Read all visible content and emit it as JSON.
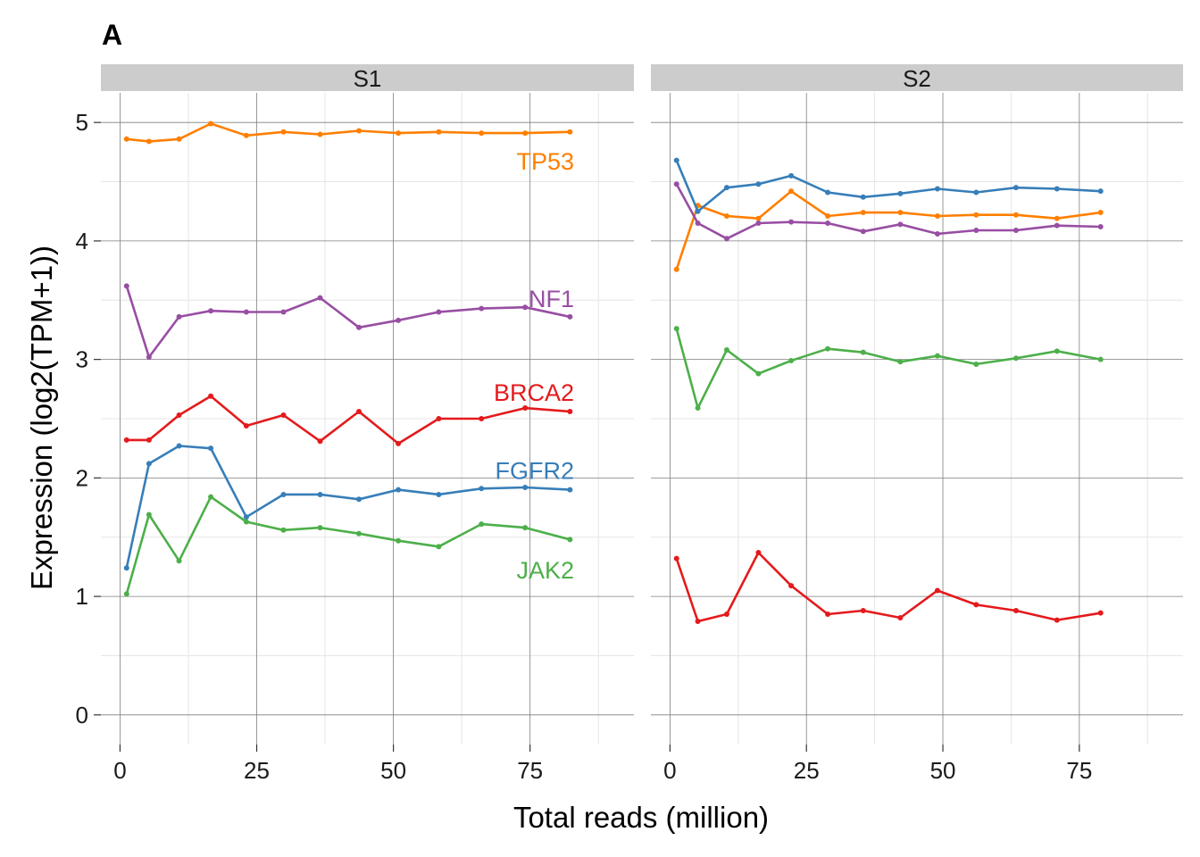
{
  "panel_tag": "A",
  "colors": {
    "TP53": "#FF7F00",
    "NF1": "#984EA3",
    "BRCA2": "#E41A1C",
    "FGFR2": "#377EB8",
    "JAK2": "#4DAF4A",
    "strip_bg": "#cccccc",
    "grid_major": "#7f7f7f",
    "grid_minor": "#e5e5e5"
  },
  "chart_data": {
    "type": "line",
    "xlabel": "Total reads (million)",
    "ylabel": "Expression (log2(TPM+1))",
    "xlim": [
      -3.5,
      94
    ],
    "ylim": [
      -0.25,
      5.25
    ],
    "x_ticks": [
      0,
      25,
      50,
      75
    ],
    "y_ticks": [
      0,
      1,
      2,
      3,
      4,
      5
    ],
    "x_tick_labels": [
      "0",
      "25",
      "50",
      "75"
    ],
    "y_tick_labels": [
      "0",
      "1",
      "2",
      "3",
      "4",
      "5"
    ],
    "grid": true,
    "facets": [
      {
        "name": "S1",
        "x": [
          1.2,
          5.3,
          10.8,
          16.6,
          23.1,
          29.9,
          36.6,
          43.7,
          50.9,
          58.3,
          66.1,
          74.1,
          82.3
        ],
        "series": [
          {
            "name": "TP53",
            "values": [
              4.86,
              4.84,
              4.86,
              4.99,
              4.89,
              4.92,
              4.9,
              4.93,
              4.91,
              4.92,
              4.91,
              4.91,
              4.92
            ]
          },
          {
            "name": "NF1",
            "values": [
              3.62,
              3.02,
              3.36,
              3.41,
              3.4,
              3.4,
              3.52,
              3.27,
              3.33,
              3.4,
              3.43,
              3.44,
              3.36
            ]
          },
          {
            "name": "BRCA2",
            "values": [
              2.32,
              2.32,
              2.53,
              2.69,
              2.44,
              2.53,
              2.31,
              2.56,
              2.29,
              2.5,
              2.5,
              2.59,
              2.56
            ]
          },
          {
            "name": "FGFR2",
            "values": [
              1.24,
              2.12,
              2.27,
              2.25,
              1.67,
              1.86,
              1.86,
              1.82,
              1.9,
              1.86,
              1.91,
              1.92,
              1.9
            ]
          },
          {
            "name": "JAK2",
            "values": [
              1.02,
              1.69,
              1.3,
              1.84,
              1.63,
              1.56,
              1.58,
              1.53,
              1.47,
              1.42,
              1.61,
              1.58,
              1.48
            ]
          }
        ],
        "labels": [
          "TP53",
          "NF1",
          "BRCA2",
          "FGFR2",
          "JAK2"
        ]
      },
      {
        "name": "S2",
        "x": [
          1.2,
          5.1,
          10.4,
          16.2,
          22.2,
          28.9,
          35.4,
          42.2,
          49.0,
          56.1,
          63.4,
          70.9,
          78.9
        ],
        "series": [
          {
            "name": "TP53",
            "values": [
              3.76,
              4.3,
              4.21,
              4.19,
              4.42,
              4.21,
              4.24,
              4.24,
              4.21,
              4.22,
              4.22,
              4.19,
              4.24
            ]
          },
          {
            "name": "NF1",
            "values": [
              4.48,
              4.15,
              4.02,
              4.15,
              4.16,
              4.15,
              4.08,
              4.14,
              4.06,
              4.09,
              4.09,
              4.13,
              4.12
            ]
          },
          {
            "name": "BRCA2",
            "values": [
              1.32,
              0.79,
              0.85,
              1.37,
              1.09,
              0.85,
              0.88,
              0.82,
              1.05,
              0.93,
              0.88,
              0.8,
              0.86
            ]
          },
          {
            "name": "FGFR2",
            "values": [
              4.68,
              4.25,
              4.45,
              4.48,
              4.55,
              4.41,
              4.37,
              4.4,
              4.44,
              4.41,
              4.45,
              4.44,
              4.42
            ]
          },
          {
            "name": "JAK2",
            "values": [
              3.26,
              2.59,
              3.08,
              2.88,
              2.99,
              3.09,
              3.06,
              2.98,
              3.03,
              2.96,
              3.01,
              3.07,
              3.0
            ]
          }
        ],
        "labels": []
      }
    ]
  }
}
